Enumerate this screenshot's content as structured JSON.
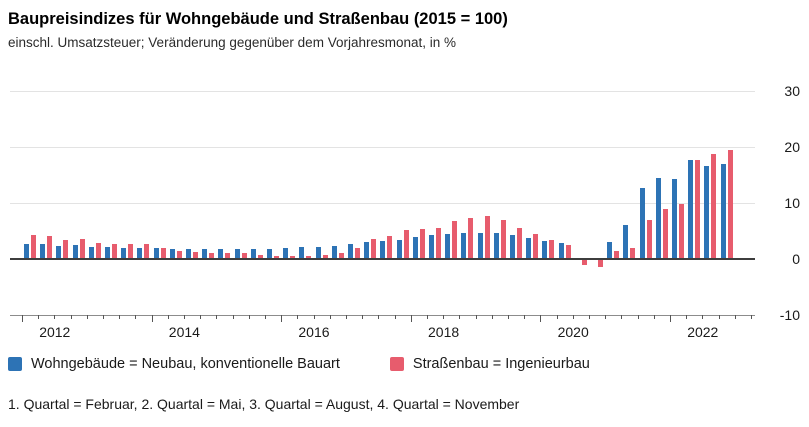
{
  "chart_data": {
    "type": "bar",
    "title": "Baupreisindizes für Wohngebäude und Straßenbau (2015 = 100)",
    "subtitle": "einschl. Umsatzsteuer; Veränderung gegenüber dem Vorjahresmonat, in %",
    "categories": [
      "2012 Q1",
      "2012 Q2",
      "2012 Q3",
      "2012 Q4",
      "2013 Q1",
      "2013 Q2",
      "2013 Q3",
      "2013 Q4",
      "2014 Q1",
      "2014 Q2",
      "2014 Q3",
      "2014 Q4",
      "2015 Q1",
      "2015 Q2",
      "2015 Q3",
      "2015 Q4",
      "2016 Q1",
      "2016 Q2",
      "2016 Q3",
      "2016 Q4",
      "2017 Q1",
      "2017 Q2",
      "2017 Q3",
      "2017 Q4",
      "2018 Q1",
      "2018 Q2",
      "2018 Q3",
      "2018 Q4",
      "2019 Q1",
      "2019 Q2",
      "2019 Q3",
      "2019 Q4",
      "2020 Q1",
      "2020 Q2",
      "2020 Q3",
      "2020 Q4",
      "2021 Q1",
      "2021 Q2",
      "2021 Q3",
      "2021 Q4",
      "2022 Q1",
      "2022 Q2",
      "2022 Q3",
      "2022 Q4"
    ],
    "series": [
      {
        "name": "Wohngebäude = Neubau, konventionelle Bauart",
        "color": "#2d73b5",
        "values": [
          2.7,
          2.7,
          2.4,
          2.5,
          2.2,
          2.1,
          2.0,
          2.0,
          1.9,
          1.8,
          1.7,
          1.8,
          1.8,
          1.8,
          1.8,
          1.7,
          1.9,
          2.2,
          2.2,
          2.4,
          2.7,
          3.0,
          3.2,
          3.4,
          4.0,
          4.2,
          4.5,
          4.6,
          4.6,
          4.6,
          4.2,
          3.7,
          3.3,
          2.8,
          0.1,
          0.1,
          3.0,
          6.0,
          12.6,
          14.4,
          14.3,
          17.7,
          16.6,
          16.9
        ]
      },
      {
        "name": "Straßenbau = Ingenieurbau",
        "color": "#e75c6d",
        "values": [
          4.3,
          4.1,
          3.4,
          3.5,
          2.9,
          2.6,
          2.6,
          2.7,
          2.0,
          1.5,
          1.2,
          1.1,
          1.1,
          1.0,
          0.7,
          0.6,
          0.5,
          0.5,
          0.8,
          1.1,
          1.9,
          3.5,
          4.1,
          5.1,
          5.3,
          5.6,
          6.8,
          7.3,
          7.6,
          7.0,
          5.5,
          4.4,
          3.4,
          2.5,
          -1.1,
          -1.4,
          1.5,
          2.0,
          6.9,
          9.0,
          9.9,
          17.6,
          18.7,
          19.4
        ]
      }
    ],
    "ylabel": "in %",
    "ylim": [
      -10,
      30
    ],
    "yticks": [
      30,
      20,
      10,
      0,
      -10
    ],
    "xtick_years": [
      "2012",
      "2014",
      "2016",
      "2018",
      "2020",
      "2022"
    ],
    "grid": true,
    "legend_position": "bottom",
    "footnote": "1. Quartal = Februar, 2. Quartal = Mai, 3. Quartal = August, 4. Quartal = November"
  }
}
